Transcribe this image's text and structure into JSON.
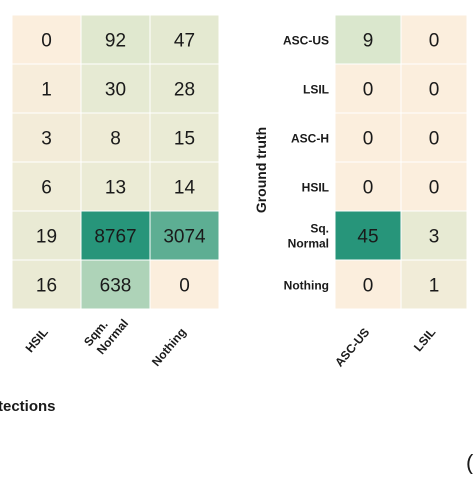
{
  "chart_data": [
    {
      "type": "heatmap",
      "title": "",
      "xlabel": "tections",
      "ylabel": "",
      "x_categories": [
        "HSIL",
        "Sqm. Normal",
        "Nothing"
      ],
      "y_categories": [
        "",
        "",
        "",
        "",
        "",
        ""
      ],
      "values": [
        [
          0,
          92,
          47
        ],
        [
          1,
          30,
          28
        ],
        [
          3,
          8,
          15
        ],
        [
          6,
          13,
          14
        ],
        [
          19,
          8767,
          3074
        ],
        [
          16,
          638,
          0
        ]
      ]
    },
    {
      "type": "heatmap",
      "title": "",
      "xlabel": "",
      "ylabel": "Ground truth",
      "x_categories": [
        "ASC-US",
        "LSIL"
      ],
      "y_categories": [
        "ASC-US",
        "LSIL",
        "ASC-H",
        "HSIL",
        "Sq. Normal",
        "Nothing"
      ],
      "values": [
        [
          9,
          0
        ],
        [
          0,
          0
        ],
        [
          0,
          0
        ],
        [
          0,
          0
        ],
        [
          45,
          3
        ],
        [
          0,
          1
        ]
      ]
    }
  ],
  "colors": {
    "low": "#fbeedd",
    "mid": "#d9e7cc",
    "high": "#27957a",
    "grid": "#ffffff",
    "text": "#1a1a1a"
  }
}
